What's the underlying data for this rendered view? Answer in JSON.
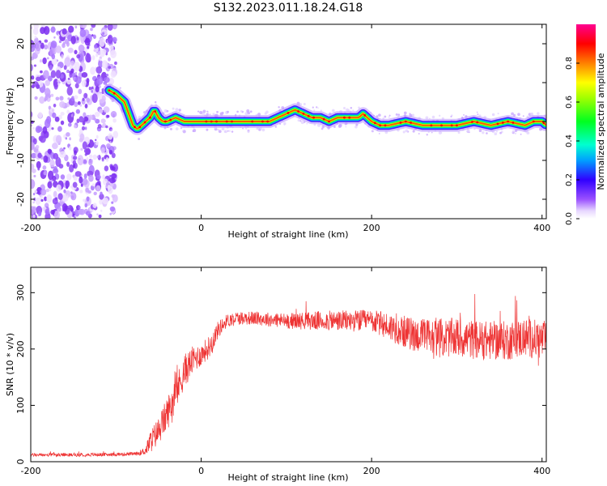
{
  "title": "S132.2023.011.18.24.G18",
  "colorbar": {
    "label": "Normalized spectral amplitude",
    "ticks": [
      0.0,
      0.2,
      0.4,
      0.6,
      0.8
    ],
    "tick_labels": [
      "0.0",
      "0.2",
      "0.4",
      "0.6",
      "0.8"
    ],
    "range": [
      0.0,
      1.0
    ]
  },
  "chart_data": [
    {
      "type": "heatmap",
      "xlabel": "Height of straight line (km)",
      "ylabel": "Frequency (Hz)",
      "xlim": [
        -200,
        405
      ],
      "ylim": [
        -25,
        25
      ],
      "xticks": [
        -200,
        0,
        200,
        400
      ],
      "xtick_labels": [
        "-200",
        "0",
        "200",
        "400"
      ],
      "yticks": [
        -20,
        -10,
        0,
        10,
        20
      ],
      "ytick_labels": [
        "-20",
        "-10",
        "0",
        "10",
        "20"
      ],
      "noise_region_x": [
        -200,
        -100
      ],
      "ridge": {
        "x": [
          -108,
          -100,
          -95,
          -90,
          -85,
          -80,
          -75,
          -70,
          -65,
          -60,
          -55,
          -50,
          -45,
          -40,
          -30,
          -20,
          -10,
          0,
          20,
          40,
          60,
          80,
          90,
          100,
          110,
          120,
          130,
          140,
          150,
          160,
          170,
          180,
          185,
          190,
          195,
          200,
          210,
          220,
          240,
          260,
          280,
          300,
          320,
          340,
          360,
          380,
          390,
          400,
          405
        ],
        "y": [
          8,
          7,
          6,
          5,
          2,
          -1,
          -2,
          -1,
          0,
          1,
          3,
          1,
          0,
          0,
          1,
          0,
          0,
          0,
          0,
          0,
          0,
          0,
          1,
          2,
          3,
          2,
          1,
          1,
          0,
          1,
          1,
          1,
          1,
          2,
          1,
          0,
          -1,
          -1,
          0,
          -1,
          -1,
          -1,
          0,
          -1,
          0,
          -1,
          0,
          0,
          -1
        ]
      }
    },
    {
      "type": "line",
      "xlabel": "Height of straight line (km)",
      "ylabel": "SNR (10 * v/v)",
      "xlim": [
        -200,
        405
      ],
      "ylim": [
        0,
        345
      ],
      "xticks": [
        -200,
        0,
        200,
        400
      ],
      "xtick_labels": [
        "-200",
        "0",
        "200",
        "400"
      ],
      "yticks": [
        0,
        100,
        200,
        300
      ],
      "ytick_labels": [
        "0",
        "100",
        "200",
        "300"
      ],
      "color": "#ee3333",
      "envelope": {
        "x": [
          -200,
          -150,
          -100,
          -75,
          -65,
          -60,
          -50,
          -40,
          -30,
          -20,
          -10,
          0,
          10,
          20,
          30,
          40,
          60,
          100,
          150,
          200,
          220,
          250,
          280,
          300,
          330,
          360,
          380,
          405
        ],
        "mean": [
          12,
          12,
          13,
          14,
          20,
          35,
          55,
          85,
          120,
          160,
          180,
          190,
          205,
          235,
          250,
          255,
          255,
          250,
          250,
          250,
          240,
          225,
          220,
          220,
          215,
          215,
          220,
          215
        ],
        "spread": [
          3,
          3,
          3,
          3,
          8,
          20,
          25,
          30,
          30,
          30,
          25,
          20,
          20,
          15,
          12,
          12,
          12,
          14,
          18,
          20,
          25,
          30,
          35,
          35,
          35,
          35,
          35,
          35
        ]
      }
    }
  ]
}
